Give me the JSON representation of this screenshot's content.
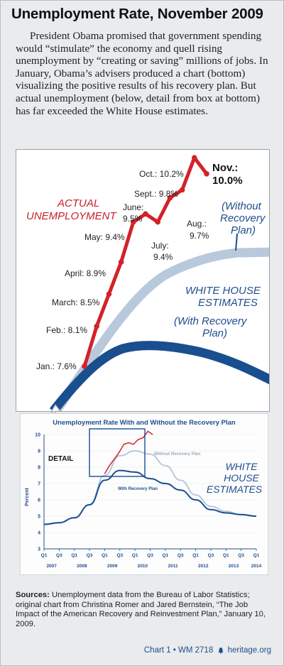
{
  "title": "Unemployment Rate, November 2009",
  "intro": "President Obama promised that government spending would “stimulate” the economy and quell rising unemployment by “creating or saving” millions of jobs. In January, Obama’s advisers produced a chart (bottom) visualizing the positive results of his recovery plan. But actual unemployment (below, detail from box at bottom) has far exceeded the White House estimates.",
  "detail_chart": {
    "actual_label_1": "ACTUAL",
    "actual_label_2": "UNEMPLOYMENT",
    "without_label_1": "(Without",
    "without_label_2": "Recovery",
    "without_label_3": "Plan)",
    "wh_label_1": "WHITE HOUSE",
    "wh_label_2": "ESTIMATES",
    "with_label_1": "(With Recovery",
    "with_label_2": "Plan)",
    "nov_label_1": "Nov.:",
    "nov_label_2": "10.0%",
    "month_labels": [
      "Jan.: 7.6%",
      "Feb.: 8.1%",
      "March: 8.5%",
      "April: 8.9%",
      "May: 9.4%",
      "June:",
      "9.5%",
      "July:",
      "9.4%",
      "Aug.:",
      "9.7%",
      "Sept.: 9.8%",
      "Oct.: 10.2%"
    ]
  },
  "inset": {
    "title": "Unemployment Rate With and Without the Recovery Plan",
    "ylabel": "Percent",
    "detail_label": "DETAIL",
    "without_label": "Without Recovery Plan",
    "with_label": "With Recovery Plan",
    "wh_label_1": "WHITE",
    "wh_label_2": "HOUSE",
    "wh_label_3": "ESTIMATES",
    "y_ticks": [
      "10",
      "9",
      "8",
      "7",
      "6",
      "5",
      "4",
      "3"
    ],
    "x_ticks": [
      "Q1",
      "Q3",
      "Q1",
      "Q3",
      "Q1",
      "Q3",
      "Q1",
      "Q3",
      "Q1",
      "Q3",
      "Q1",
      "Q3",
      "Q1",
      "Q3",
      "Q1"
    ],
    "years": [
      "2007",
      "2008",
      "2009",
      "2010",
      "2011",
      "2012",
      "2013",
      "2014"
    ]
  },
  "sources": {
    "label": "Sources:",
    "text": " Unemployment data from the Bureau of Labor Statistics; original chart from Christina Romer and Jared Bernstein, “The Job Impact of the American Recovery and Reinvestment Plan,” January 10, 2009."
  },
  "footer": {
    "chart": "Chart 1 • WM 2718",
    "site": "heritage.org"
  },
  "colors": {
    "actual": "#d3222a",
    "with_plan": "#1a4f8f",
    "without_plan": "#b8c9dc",
    "label_red": "#c8202a",
    "label_blue": "#1f4e8c"
  },
  "chart_data": [
    {
      "type": "line",
      "title": "",
      "x": [
        "Jan.",
        "Feb.",
        "March",
        "April",
        "May",
        "June",
        "July",
        "Aug.",
        "Sept.",
        "Oct.",
        "Nov."
      ],
      "series": [
        {
          "name": "ACTUAL UNEMPLOYMENT",
          "values": [
            7.6,
            8.1,
            8.5,
            8.9,
            9.4,
            9.5,
            9.4,
            9.7,
            9.8,
            10.2,
            10.0
          ]
        }
      ]
    },
    {
      "type": "line",
      "title": "Unemployment Rate With and Without the Recovery Plan",
      "ylabel": "Percent",
      "ylim": [
        3,
        10
      ],
      "x": [
        "2007 Q1",
        "2007 Q3",
        "2008 Q1",
        "2008 Q3",
        "2009 Q1",
        "2009 Q3",
        "2010 Q1",
        "2010 Q3",
        "2011 Q1",
        "2011 Q3",
        "2012 Q1",
        "2012 Q3",
        "2013 Q1",
        "2013 Q3",
        "2014 Q1"
      ],
      "series": [
        {
          "name": "Without Recovery Plan",
          "values": [
            4.5,
            4.6,
            4.9,
            5.7,
            7.5,
            8.7,
            9.0,
            8.8,
            8.1,
            7.2,
            6.3,
            5.6,
            5.3,
            5.1,
            5.0
          ]
        },
        {
          "name": "With Recovery Plan",
          "values": [
            4.5,
            4.6,
            4.9,
            5.7,
            7.2,
            7.8,
            7.7,
            7.3,
            7.0,
            6.6,
            6.0,
            5.4,
            5.2,
            5.1,
            5.0
          ]
        }
      ]
    }
  ]
}
